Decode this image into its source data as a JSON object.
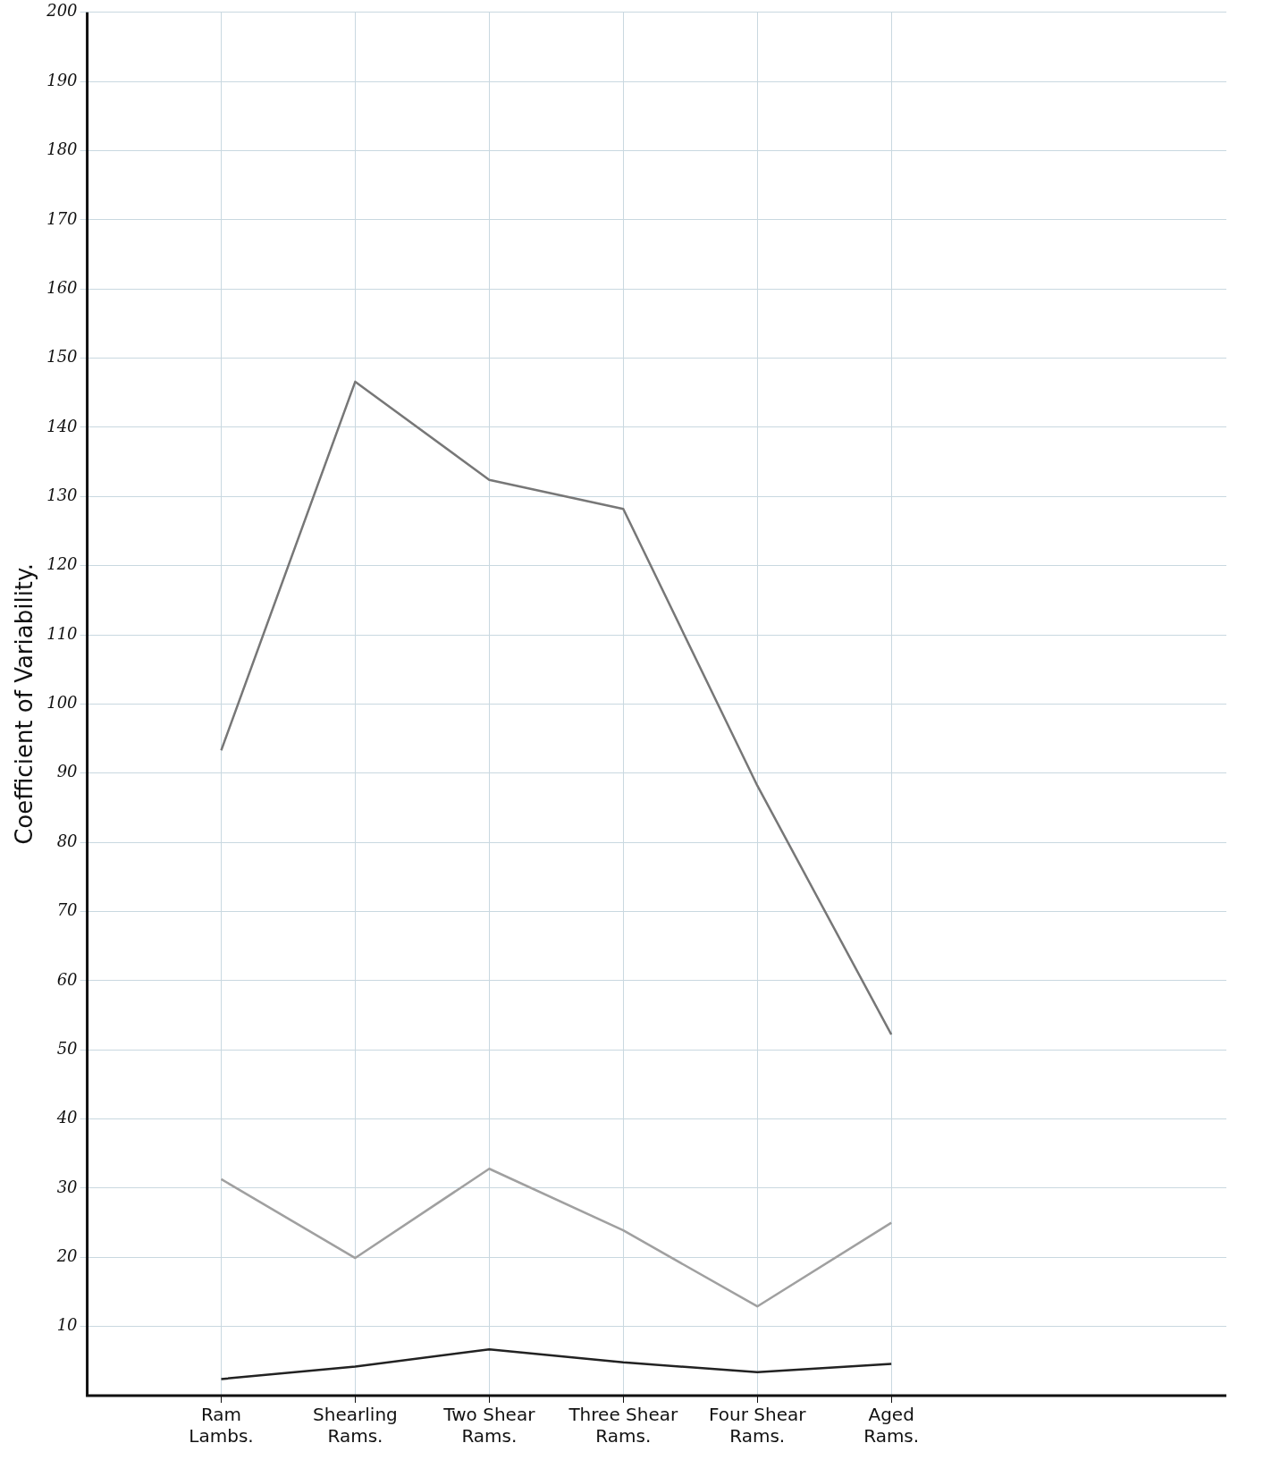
{
  "chart_data": {
    "type": "line",
    "ylabel": "Coefficient of Variability.",
    "categories": [
      "Ram Lambs.",
      "Shearling Rams.",
      "Two Shear Rams.",
      "Three Shear Rams.",
      "Four Shear Rams.",
      "Aged Rams."
    ],
    "series": [
      {
        "color": "#777777",
        "values": [
          93.3,
          146.6,
          132.4,
          128.2,
          88.2,
          52.2
        ]
      },
      {
        "color": "#a0a0a0",
        "values": [
          31.3,
          19.9,
          32.8,
          23.9,
          12.9,
          25.0
        ]
      },
      {
        "color": "#222222",
        "values": [
          2.4,
          4.2,
          6.7,
          4.8,
          3.4,
          4.6
        ]
      }
    ],
    "ylim": [
      0,
      200
    ],
    "yticks": [
      10,
      20,
      30,
      40,
      50,
      60,
      70,
      80,
      90,
      100,
      110,
      120,
      130,
      140,
      150,
      160,
      170,
      180,
      190,
      200
    ],
    "grid": true,
    "legend": false,
    "marker": "none",
    "line_style": "solid"
  }
}
